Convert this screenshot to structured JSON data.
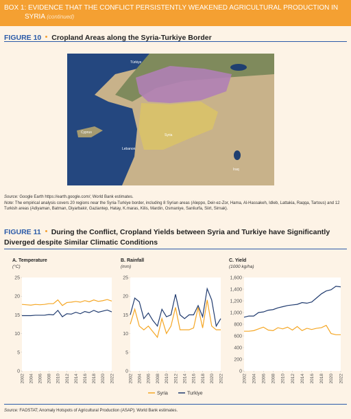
{
  "header": {
    "title": "BOX 1: EVIDENCE THAT THE CONFLICT PERSISTENTLY WEAKENED AGRICULTURAL PRODUCTION IN SYRIA",
    "continued": "(continued)"
  },
  "figure10": {
    "label": "FIGURE 10",
    "title": "Cropland Areas along the Syria-Turkiye Border",
    "map_labels": [
      "Türkiye",
      "Cyprus",
      "Syria",
      "Lebanon",
      "Iraq"
    ],
    "source_label": "Source:",
    "source": "Google Earth https://earth.google.com/; World Bank estimates.",
    "note_label": "Note:",
    "note": "The empirical analysis covers 20 regions near the Syria-Turkiye border, including 8 Syrian areas (Aleppo, Deir-ez-Zor, Hama, Al-Hassakeh, Idleb, Lattakia, Raqqa, Tartous) and 12 Turkish areas (Adiyaman, Batman, Diyarbakir, Gaziantep, Hatay, K.maras, Kilis, Mardin, Osmaniye, Sanliurfa, Siirt, Sirnak)."
  },
  "figure11": {
    "label": "FIGURE 11",
    "title": "During the Conflict, Cropland Yields between Syria and Turkiye have Significantly Diverged despite Similar Climatic Conditions",
    "source_label": "Source:",
    "source": "FAOSTAT; Anomaly Hotspots of Agricultural Production (ASAP); World Bank estimates."
  },
  "chart_data": [
    {
      "type": "line",
      "title": "A. Temperature",
      "subtitle": "(°C)",
      "x": [
        2002,
        2003,
        2004,
        2005,
        2006,
        2007,
        2008,
        2009,
        2010,
        2011,
        2012,
        2013,
        2014,
        2015,
        2016,
        2017,
        2018,
        2019,
        2020,
        2021,
        2022
      ],
      "xlim": [
        2002,
        2022
      ],
      "xticks": [
        2002,
        2004,
        2006,
        2008,
        2010,
        2012,
        2014,
        2016,
        2018,
        2020,
        2022
      ],
      "ylim": [
        0,
        25
      ],
      "yticks": [
        0,
        5,
        10,
        15,
        20,
        25
      ],
      "series": [
        {
          "name": "Syria",
          "color": "#f5a623",
          "values": [
            17.8,
            17.7,
            17.6,
            17.8,
            17.7,
            17.8,
            18.0,
            18.0,
            19.0,
            17.5,
            18.3,
            18.4,
            18.6,
            18.4,
            18.8,
            18.5,
            19.0,
            18.6,
            18.8,
            19.1,
            18.7
          ]
        },
        {
          "name": "Turkiye",
          "color": "#1f3a6e",
          "values": [
            14.8,
            14.8,
            14.8,
            14.9,
            14.9,
            14.9,
            15.1,
            15.0,
            16.2,
            14.5,
            15.3,
            15.2,
            15.7,
            15.3,
            15.9,
            15.6,
            16.2,
            15.7,
            16.0,
            16.3,
            15.8
          ]
        }
      ]
    },
    {
      "type": "line",
      "title": "B. Rainfall",
      "subtitle": "(mm)",
      "x": [
        2002,
        2003,
        2004,
        2005,
        2006,
        2007,
        2008,
        2009,
        2010,
        2011,
        2012,
        2013,
        2014,
        2015,
        2016,
        2017,
        2018,
        2019,
        2020,
        2021,
        2022
      ],
      "xlim": [
        2002,
        2022
      ],
      "xticks": [
        2002,
        2004,
        2006,
        2008,
        2010,
        2012,
        2014,
        2016,
        2018,
        2020,
        2022
      ],
      "ylim": [
        0,
        25
      ],
      "yticks": [
        0,
        5,
        10,
        15,
        20,
        25
      ],
      "legend": "bottom",
      "series": [
        {
          "name": "Syria",
          "color": "#f5a623",
          "values": [
            12.5,
            16.5,
            12,
            11,
            12,
            10.5,
            9,
            14,
            10,
            12,
            17,
            11,
            11,
            11,
            11.5,
            17,
            11.5,
            19,
            12,
            11,
            11
          ]
        },
        {
          "name": "Turkiye",
          "color": "#1f3a6e",
          "values": [
            15,
            19.5,
            18.5,
            14,
            15.5,
            13.5,
            12,
            16.5,
            14.5,
            15,
            20.5,
            15,
            14,
            15,
            15,
            17.5,
            14.5,
            22,
            19,
            12,
            14
          ]
        }
      ]
    },
    {
      "type": "line",
      "title": "C. Yield",
      "subtitle": "(1000 kg/ha)",
      "x": [
        2002,
        2003,
        2004,
        2005,
        2006,
        2007,
        2008,
        2009,
        2010,
        2011,
        2012,
        2013,
        2014,
        2015,
        2016,
        2017,
        2018,
        2019,
        2020,
        2021,
        2022
      ],
      "xlim": [
        2002,
        2022
      ],
      "xticks": [
        2002,
        2004,
        2006,
        2008,
        2010,
        2012,
        2014,
        2016,
        2018,
        2020,
        2022
      ],
      "ylim": [
        0,
        1600
      ],
      "yticks": [
        0,
        200,
        400,
        600,
        800,
        {
          "value": 1000,
          "label": "1,000"
        },
        {
          "value": 1200,
          "label": "1,200"
        },
        {
          "value": 1400,
          "label": "1,400"
        },
        {
          "value": 1600,
          "label": "1,600"
        }
      ],
      "series": [
        {
          "name": "Syria",
          "color": "#f5a623",
          "values": [
            680,
            680,
            690,
            720,
            750,
            700,
            690,
            740,
            720,
            750,
            700,
            760,
            690,
            730,
            710,
            730,
            740,
            780,
            640,
            620,
            620
          ]
        },
        {
          "name": "Turkiye",
          "color": "#1f3a6e",
          "values": [
            920,
            940,
            940,
            1000,
            1010,
            1040,
            1050,
            1080,
            1100,
            1120,
            1130,
            1140,
            1170,
            1160,
            1180,
            1250,
            1320,
            1370,
            1390,
            1450,
            1440
          ]
        }
      ]
    }
  ]
}
